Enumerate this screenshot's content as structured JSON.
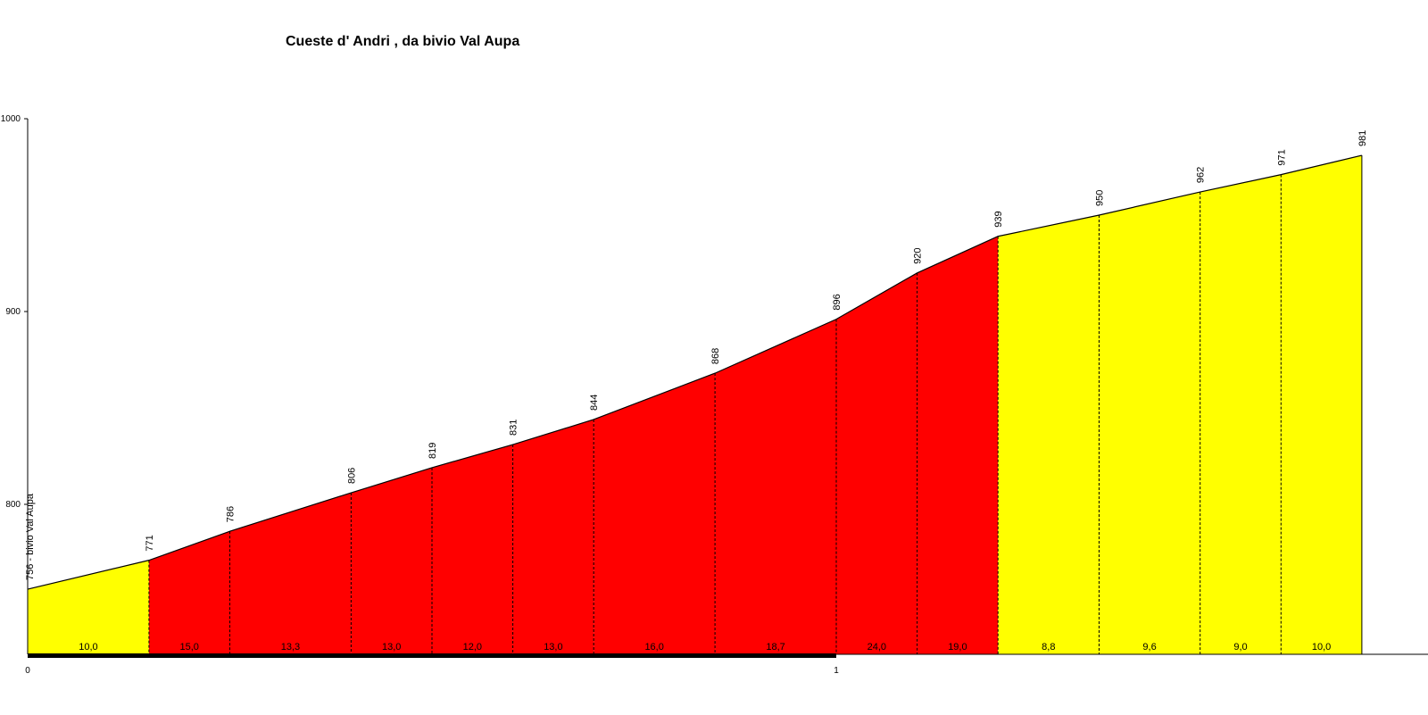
{
  "chart_data": {
    "type": "area",
    "title": "Cueste d' Andri , da bivio Val Aupa",
    "xlabel": "",
    "ylabel": "",
    "xlim": [
      0,
      1.8
    ],
    "ylim": [
      720,
      1000
    ],
    "y_ticks": [
      "800",
      "900",
      "1000"
    ],
    "x_ticks": [
      {
        "x": 0,
        "label": "0"
      },
      {
        "x": 1,
        "label": "1"
      }
    ],
    "points": [
      {
        "x": 0.0,
        "y": 756,
        "label": "756 - bivio Val Aupa"
      },
      {
        "x": 0.15,
        "y": 771,
        "label": "771"
      },
      {
        "x": 0.25,
        "y": 786,
        "label": "786"
      },
      {
        "x": 0.4,
        "y": 806,
        "label": "806"
      },
      {
        "x": 0.5,
        "y": 819,
        "label": "819"
      },
      {
        "x": 0.6,
        "y": 831,
        "label": "831"
      },
      {
        "x": 0.7,
        "y": 844,
        "label": "844"
      },
      {
        "x": 0.85,
        "y": 868,
        "label": "868"
      },
      {
        "x": 1.0,
        "y": 896,
        "label": "896"
      },
      {
        "x": 1.1,
        "y": 920,
        "label": "920"
      },
      {
        "x": 1.2,
        "y": 939,
        "label": "939"
      },
      {
        "x": 1.325,
        "y": 950,
        "label": "950"
      },
      {
        "x": 1.45,
        "y": 962,
        "label": "962"
      },
      {
        "x": 1.55,
        "y": 971,
        "label": "971"
      },
      {
        "x": 1.65,
        "y": 981,
        "label": "981"
      }
    ],
    "segments": [
      {
        "gradient": "10,0",
        "color": "#ffff00"
      },
      {
        "gradient": "15,0",
        "color": "#ff0000"
      },
      {
        "gradient": "13,3",
        "color": "#ff0000"
      },
      {
        "gradient": "13,0",
        "color": "#ff0000"
      },
      {
        "gradient": "12,0",
        "color": "#ff0000"
      },
      {
        "gradient": "13,0",
        "color": "#ff0000"
      },
      {
        "gradient": "16,0",
        "color": "#ff0000"
      },
      {
        "gradient": "18,7",
        "color": "#ff0000"
      },
      {
        "gradient": "24,0",
        "color": "#ff0000"
      },
      {
        "gradient": "19,0",
        "color": "#ff0000"
      },
      {
        "gradient": "8,8",
        "color": "#ffff00"
      },
      {
        "gradient": "9,6",
        "color": "#ffff00"
      },
      {
        "gradient": "9,0",
        "color": "#ffff00"
      },
      {
        "gradient": "10,0",
        "color": "#ffff00"
      }
    ],
    "grid": false,
    "legend": "none"
  }
}
